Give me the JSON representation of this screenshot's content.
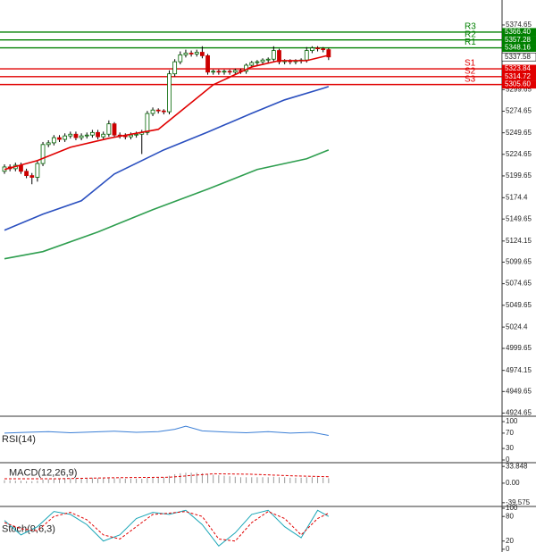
{
  "chart_data": [
    {
      "type": "candlestick",
      "up_color": "#ffffff",
      "up_stroke": "#006400",
      "down_color": "#cc0000",
      "open": [
        5205,
        5210,
        5208,
        5212,
        5205,
        5200,
        5198,
        5214,
        5236,
        5238,
        5244,
        5242,
        5246,
        5248,
        5244,
        5246,
        5247,
        5250,
        5245,
        5248,
        5260,
        5247,
        5246,
        5245,
        5247,
        5248,
        5250,
        5272,
        5276,
        5275,
        5274,
        5318,
        5332,
        5340,
        5342,
        5341,
        5343,
        5339,
        5320,
        5321,
        5320,
        5321,
        5320,
        5322,
        5321,
        5328,
        5331,
        5332,
        5334,
        5335,
        5345,
        5332,
        5333,
        5332,
        5333,
        5334,
        5345,
        5348,
        5347,
        5346
      ],
      "high": [
        5213,
        5213,
        5215,
        5215,
        5208,
        5203,
        5217,
        5239,
        5241,
        5247,
        5247,
        5249,
        5251,
        5251,
        5249,
        5250,
        5253,
        5253,
        5251,
        5264,
        5262,
        5250,
        5249,
        5250,
        5251,
        5253,
        5275,
        5279,
        5278,
        5277,
        5322,
        5335,
        5344,
        5346,
        5345,
        5346,
        5350,
        5341,
        5323,
        5323,
        5323,
        5323,
        5324,
        5324,
        5330,
        5333,
        5334,
        5336,
        5337,
        5350,
        5347,
        5335,
        5335,
        5335,
        5336,
        5349,
        5350,
        5350,
        5349,
        5348
      ],
      "low": [
        5202,
        5205,
        5205,
        5202,
        5197,
        5190,
        5193,
        5211,
        5233,
        5235,
        5239,
        5239,
        5243,
        5241,
        5241,
        5243,
        5244,
        5242,
        5242,
        5245,
        5244,
        5243,
        5242,
        5242,
        5244,
        5225,
        5247,
        5269,
        5272,
        5271,
        5271,
        5315,
        5329,
        5337,
        5338,
        5338,
        5336,
        5317,
        5317,
        5317,
        5317,
        5317,
        5317,
        5318,
        5318,
        5325,
        5328,
        5329,
        5331,
        5332,
        5329,
        5329,
        5329,
        5329,
        5330,
        5331,
        5342,
        5344,
        5343,
        5334
      ],
      "close": [
        5210,
        5208,
        5212,
        5205,
        5200,
        5198,
        5214,
        5236,
        5238,
        5244,
        5242,
        5246,
        5248,
        5244,
        5246,
        5247,
        5250,
        5245,
        5248,
        5260,
        5247,
        5246,
        5245,
        5247,
        5248,
        5250,
        5272,
        5276,
        5275,
        5274,
        5318,
        5332,
        5340,
        5342,
        5341,
        5343,
        5339,
        5320,
        5321,
        5320,
        5321,
        5320,
        5322,
        5321,
        5328,
        5331,
        5332,
        5334,
        5335,
        5345,
        5332,
        5333,
        5332,
        5333,
        5334,
        5345,
        5348,
        5347,
        5346,
        5337.58
      ],
      "series": [
        {
          "color": "#e00000",
          "x": [
            0,
            6,
            12,
            19,
            28,
            32,
            38,
            45,
            50,
            55,
            59
          ],
          "values": [
            5207.1,
            5217.4,
            5232.9,
            5243.3,
            5253.6,
            5274.3,
            5305.3,
            5326,
            5333.3,
            5333.3,
            5339.5
          ]
        },
        {
          "color": "#2a4fbf",
          "x": [
            0,
            7,
            14,
            20,
            29,
            37,
            45,
            51,
            58,
            59
          ],
          "values": [
            5136.7,
            5155.3,
            5170.8,
            5201.9,
            5229.8,
            5250.5,
            5272.2,
            5287.8,
            5301.2,
            5303.3
          ]
        },
        {
          "color": "#2e9e4f",
          "x": [
            0,
            7,
            17,
            27,
            37,
            46,
            55,
            59
          ],
          "values": [
            5103.6,
            5111.9,
            5134.6,
            5160.5,
            5184.3,
            5207.1,
            5219.5,
            5229.8
          ]
        }
      ],
      "levels": [
        {
          "name": "R3",
          "value": 5366.4,
          "label": "5366.40",
          "color": "#008000"
        },
        {
          "name": "R2",
          "value": 5357.28,
          "color": "#008000"
        },
        {
          "name": "R1",
          "value": 5348.16,
          "color": "#008000"
        },
        {
          "name": "S1",
          "value": 5323.84,
          "color": "#e00000"
        },
        {
          "name": "S2",
          "value": 5314.72,
          "color": "#e00000"
        },
        {
          "name": "S3",
          "value": 5305.6,
          "label": "5305.60",
          "color": "#e00000"
        }
      ],
      "ylim": [
        4921,
        5403.6
      ],
      "yticks": [
        5374.65,
        5299.65,
        5274.65,
        5249.65,
        5224.65,
        5199.65,
        5174.4,
        5149.65,
        5124.15,
        5099.65,
        5074.65,
        5049.65,
        5024.4,
        4999.65,
        4974.15,
        4949.65,
        4924.65
      ]
    },
    {
      "type": "line",
      "title": "RSI(14)",
      "series": [
        {
          "color": "#3b7fd6",
          "x": [
            0,
            4,
            8,
            12,
            16,
            20,
            24,
            28,
            31,
            33,
            36,
            40,
            44,
            48,
            52,
            56,
            59
          ],
          "values": [
            70,
            72,
            74,
            71,
            73,
            75,
            72,
            74,
            80,
            88,
            76,
            73,
            71,
            74,
            70,
            72,
            64
          ]
        }
      ],
      "ylim": [
        -7,
        114
      ],
      "yticks": [
        100,
        70,
        30,
        0
      ]
    },
    {
      "type": "bar",
      "title": "MACD(12,26,9)",
      "color": "#999999",
      "values": [
        6,
        6,
        5,
        5,
        4,
        4,
        5,
        7,
        8,
        9,
        9,
        10,
        10,
        10,
        10,
        11,
        11,
        10,
        10,
        11,
        10,
        10,
        9,
        9,
        9,
        9,
        11,
        12,
        12,
        12,
        15,
        18,
        20,
        21,
        21,
        21,
        20,
        18,
        17,
        16,
        15,
        14,
        13,
        12,
        12,
        12,
        12,
        12,
        12,
        13,
        12,
        12,
        11,
        11,
        11,
        12,
        12,
        12,
        11,
        10
      ],
      "series": [
        {
          "color": "#e00000",
          "style": "dashed",
          "x": [
            0,
            10,
            20,
            30,
            38,
            45,
            52,
            59
          ],
          "values": [
            9,
            9,
            11,
            12,
            19,
            18,
            15,
            13
          ]
        }
      ],
      "ylim": [
        -47.1,
        41.4
      ],
      "yticks": [
        33.848,
        {
          "value": 0,
          "label": "0.00"
        },
        -39.575
      ]
    },
    {
      "type": "line",
      "title": "Stoch(9,6,3)",
      "series": [
        {
          "color": "#1aa6b7",
          "x": [
            0,
            3,
            6,
            9,
            12,
            15,
            18,
            21,
            24,
            27,
            30,
            33,
            36,
            39,
            42,
            45,
            48,
            51,
            54,
            57,
            59
          ],
          "values": [
            70,
            35,
            55,
            92,
            85,
            60,
            20,
            35,
            75,
            90,
            85,
            95,
            60,
            8,
            40,
            85,
            95,
            55,
            28,
            95,
            80
          ]
        },
        {
          "color": "#e00000",
          "style": "dashed",
          "x": [
            0,
            3,
            6,
            9,
            12,
            15,
            18,
            21,
            24,
            27,
            30,
            33,
            36,
            39,
            42,
            45,
            48,
            51,
            54,
            57,
            59
          ],
          "values": [
            65,
            50,
            45,
            80,
            90,
            72,
            35,
            25,
            55,
            85,
            88,
            92,
            80,
            25,
            20,
            65,
            92,
            75,
            35,
            75,
            88
          ]
        }
      ],
      "ylim": [
        -6.7,
        104.4
      ],
      "yticks": [
        100,
        80,
        20,
        0
      ]
    }
  ]
}
